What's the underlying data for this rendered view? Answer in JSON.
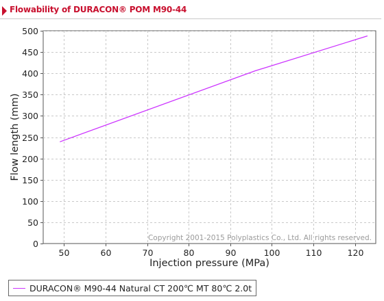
{
  "header": {
    "title": "Flowability of DURACON® POM M90-44"
  },
  "colors": {
    "accent": "#c8102e",
    "series": "#cc33ff"
  },
  "chart_data": {
    "type": "line",
    "title": "Flowability of DURACON® POM M90-44",
    "xlabel": "Injection pressure (MPa)",
    "ylabel": "Flow length (mm)",
    "xlim": [
      45,
      125
    ],
    "ylim": [
      0,
      500
    ],
    "xticks": [
      50,
      60,
      70,
      80,
      90,
      100,
      110,
      120
    ],
    "yticks": [
      0,
      50,
      100,
      150,
      200,
      250,
      300,
      350,
      400,
      450,
      500
    ],
    "grid": true,
    "legend_position": "bottom-left",
    "series": [
      {
        "name": "DURACON® M90-44 Natural CT 200℃ MT 80℃ 2.0t",
        "color": "#cc33ff",
        "x": [
          49,
          96,
          123
        ],
        "y": [
          239,
          406,
          488
        ]
      }
    ],
    "annotations": [
      "Copyright 2001-2015 Polyplastics Co., Ltd. All rights reserved."
    ]
  }
}
